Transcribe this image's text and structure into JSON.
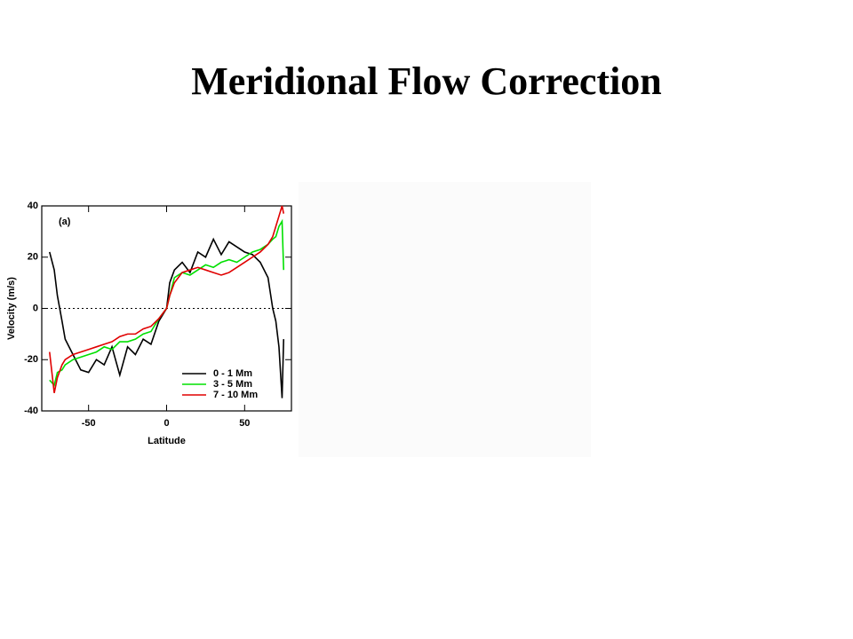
{
  "slide_title": "Meridional Flow Correction",
  "chart_data": {
    "type": "line",
    "annotation": "(a)",
    "x_label": "Latitude",
    "y_label": "Velocity (m/s)",
    "x": [
      -75,
      -72,
      -70,
      -67,
      -65,
      -60,
      -55,
      -50,
      -45,
      -40,
      -35,
      -30,
      -25,
      -20,
      -15,
      -10,
      -5,
      0,
      2,
      5,
      10,
      15,
      20,
      25,
      30,
      35,
      40,
      45,
      50,
      55,
      60,
      65,
      68,
      70,
      72,
      74,
      75
    ],
    "series": [
      {
        "name": "0 - 1 Mm",
        "color": "#000000",
        "values": [
          22,
          15,
          5,
          -5,
          -12,
          -18,
          -24,
          -25,
          -20,
          -22,
          -15,
          -26,
          -15,
          -18,
          -12,
          -14,
          -5,
          0,
          10,
          15,
          18,
          14,
          22,
          20,
          27,
          21,
          26,
          24,
          22,
          21,
          18,
          12,
          0,
          -5,
          -15,
          -35,
          -12
        ]
      },
      {
        "name": "3 - 5 Mm",
        "color": "#00e000",
        "values": [
          -28,
          -30,
          -25,
          -24,
          -22,
          -20,
          -19,
          -18,
          -17,
          -15,
          -16,
          -13,
          -13,
          -12,
          -10,
          -9,
          -4,
          0,
          5,
          12,
          14,
          13,
          15,
          17,
          16,
          18,
          19,
          18,
          20,
          22,
          23,
          25,
          27,
          28,
          32,
          34,
          15
        ]
      },
      {
        "name": "7 - 10 Mm",
        "color": "#e00000",
        "values": [
          -17,
          -33,
          -27,
          -22,
          -20,
          -18,
          -17,
          -16,
          -15,
          -14,
          -13,
          -11,
          -10,
          -10,
          -8,
          -7,
          -4,
          0,
          5,
          10,
          14,
          15,
          16,
          15,
          14,
          13,
          14,
          16,
          18,
          20,
          22,
          25,
          28,
          32,
          36,
          40,
          37
        ]
      }
    ],
    "xlim": [
      -80,
      80
    ],
    "xticks": [
      -50,
      0,
      50
    ],
    "ylim": [
      -40,
      40
    ],
    "yticks": [
      -40,
      -20,
      0,
      20,
      40
    ],
    "reference_line": 0,
    "legend": "lower right"
  }
}
